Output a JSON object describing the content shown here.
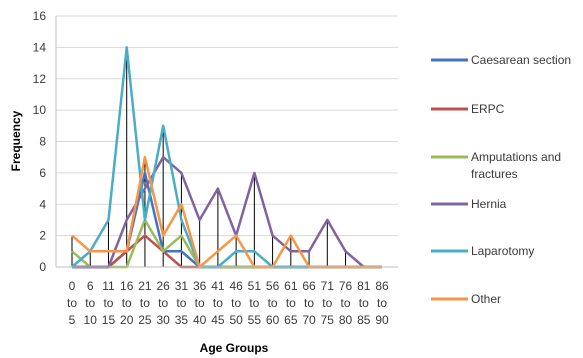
{
  "chart_data": {
    "type": "line",
    "title": "",
    "xlabel": "Age Groups",
    "ylabel": "Frequency",
    "ylim": [
      0,
      16
    ],
    "yticks": [
      "0",
      "2",
      "4",
      "6",
      "8",
      "10",
      "12",
      "14",
      "16"
    ],
    "grid": "horizontal",
    "legend_position": "right",
    "categories": [
      {
        "top": "0",
        "mid": "to",
        "bottom": "5"
      },
      {
        "top": "6",
        "mid": "to",
        "bottom": "10"
      },
      {
        "top": "11",
        "mid": "to",
        "bottom": "15"
      },
      {
        "top": "16",
        "mid": "to",
        "bottom": "20"
      },
      {
        "top": "21",
        "mid": "to",
        "bottom": "25"
      },
      {
        "top": "26",
        "mid": "to",
        "bottom": "30"
      },
      {
        "top": "31",
        "mid": "to",
        "bottom": "35"
      },
      {
        "top": "36",
        "mid": "to",
        "bottom": "40"
      },
      {
        "top": "41",
        "mid": "to",
        "bottom": "45"
      },
      {
        "top": "46",
        "mid": "to",
        "bottom": "50"
      },
      {
        "top": "51",
        "mid": "to",
        "bottom": "55"
      },
      {
        "top": "56",
        "mid": "to",
        "bottom": "60"
      },
      {
        "top": "61",
        "mid": "to",
        "bottom": "65"
      },
      {
        "top": "66",
        "mid": "to",
        "bottom": "70"
      },
      {
        "top": "71",
        "mid": "to",
        "bottom": "75"
      },
      {
        "top": "76",
        "mid": "to",
        "bottom": "80"
      },
      {
        "top": "81",
        "mid": "to",
        "bottom": "85"
      },
      {
        "top": "86",
        "mid": "to",
        "bottom": "90"
      }
    ],
    "series": [
      {
        "name": "Caesarean section",
        "color": "#4472c4",
        "values": [
          0,
          0,
          0,
          1,
          6,
          1,
          1,
          0,
          0,
          0,
          0,
          0,
          0,
          0,
          0,
          0,
          0,
          0
        ]
      },
      {
        "name": "ERPC",
        "color": "#c0504d",
        "values": [
          0,
          0,
          0,
          1,
          2,
          1,
          0,
          0,
          0,
          0,
          0,
          0,
          0,
          0,
          0,
          0,
          0,
          0
        ]
      },
      {
        "name": "Amputations and fractures",
        "color": "#9bbb59",
        "values": [
          1,
          0,
          0,
          0,
          3,
          1,
          2,
          0,
          0,
          0,
          0,
          0,
          0,
          0,
          0,
          0,
          0,
          0
        ]
      },
      {
        "name": "Hernia",
        "color": "#8064a2",
        "values": [
          0,
          0,
          0,
          3,
          5,
          7,
          6,
          3,
          5,
          2,
          6,
          2,
          1,
          1,
          3,
          1,
          0,
          0
        ]
      },
      {
        "name": "Laparotomy",
        "color": "#4bacc6",
        "values": [
          0,
          1,
          3,
          14,
          3,
          9,
          3,
          0,
          0,
          1,
          1,
          0,
          0,
          0,
          0,
          0,
          0,
          0
        ]
      },
      {
        "name": "Other",
        "color": "#f79646",
        "values": [
          2,
          1,
          1,
          1,
          7,
          2,
          4,
          0,
          1,
          2,
          0,
          0,
          2,
          0,
          0,
          0,
          0,
          0
        ]
      }
    ]
  }
}
